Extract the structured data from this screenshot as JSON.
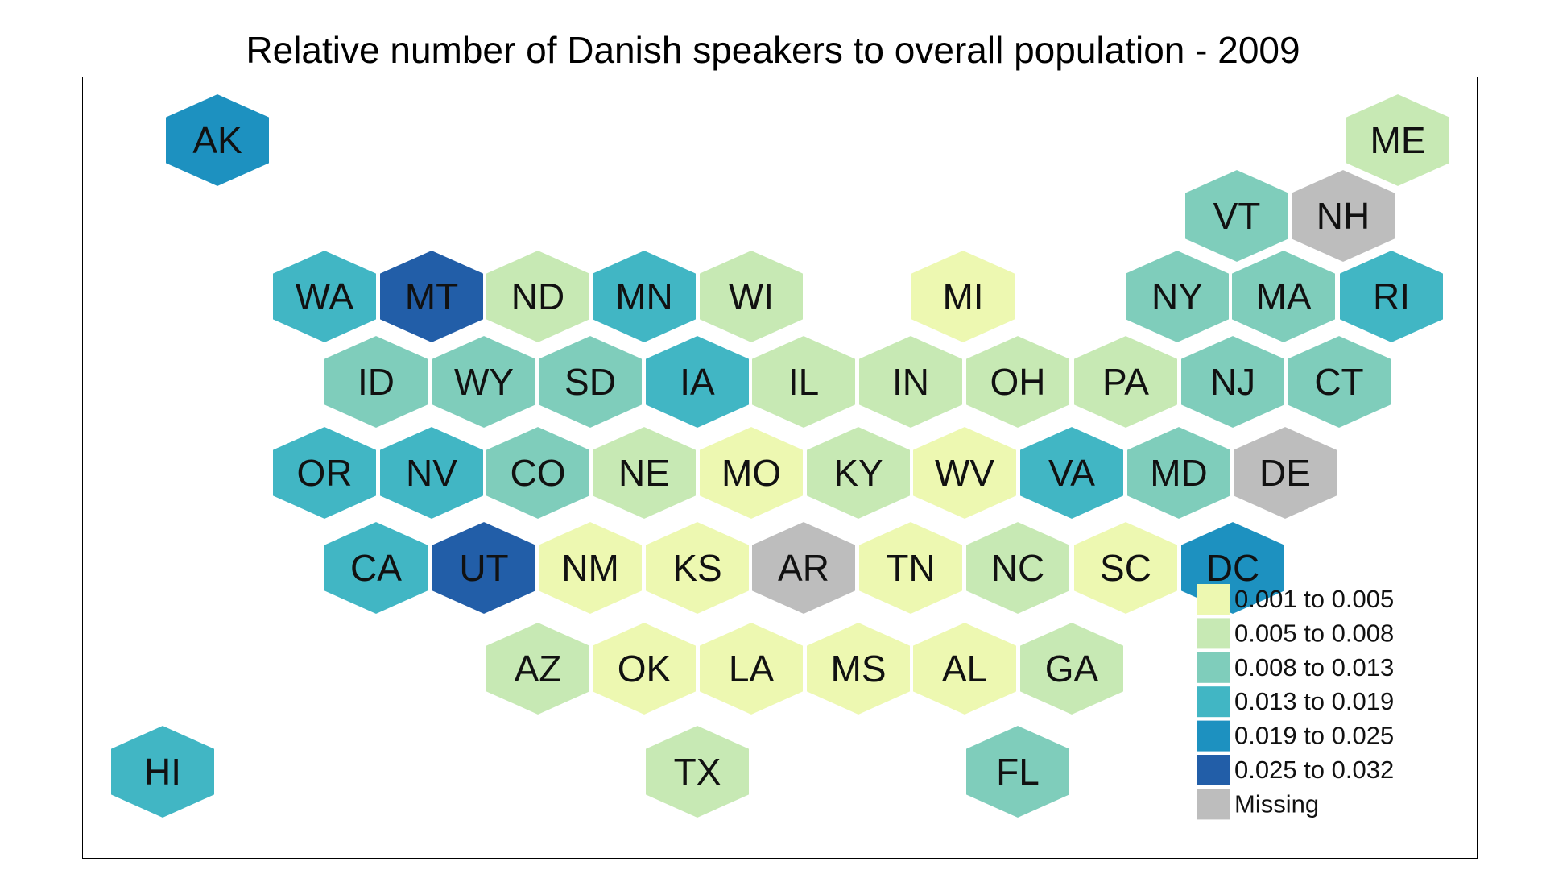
{
  "title": "Relative number of Danish speakers to overall population - 2009",
  "legend": {
    "items": [
      {
        "label": "0.001 to 0.005",
        "color": "#edf8b1"
      },
      {
        "label": "0.005 to 0.008",
        "color": "#c7e9b4"
      },
      {
        "label": "0.008 to 0.013",
        "color": "#7fcdbb"
      },
      {
        "label": "0.013 to 0.019",
        "color": "#41b6c4"
      },
      {
        "label": "0.019 to 0.025",
        "color": "#1d91c0"
      },
      {
        "label": "0.025 to 0.032",
        "color": "#225ea8"
      },
      {
        "label": "Missing",
        "color": "#bdbdbd"
      }
    ]
  },
  "states": [
    {
      "abbr": "AK",
      "bin": 4
    },
    {
      "abbr": "ME",
      "bin": 1
    },
    {
      "abbr": "VT",
      "bin": 2
    },
    {
      "abbr": "NH",
      "bin": 6
    },
    {
      "abbr": "WA",
      "bin": 3
    },
    {
      "abbr": "MT",
      "bin": 5
    },
    {
      "abbr": "ND",
      "bin": 1
    },
    {
      "abbr": "MN",
      "bin": 3
    },
    {
      "abbr": "WI",
      "bin": 1
    },
    {
      "abbr": "MI",
      "bin": 0
    },
    {
      "abbr": "NY",
      "bin": 2
    },
    {
      "abbr": "MA",
      "bin": 2
    },
    {
      "abbr": "RI",
      "bin": 3
    },
    {
      "abbr": "ID",
      "bin": 2
    },
    {
      "abbr": "WY",
      "bin": 2
    },
    {
      "abbr": "SD",
      "bin": 2
    },
    {
      "abbr": "IA",
      "bin": 3
    },
    {
      "abbr": "IL",
      "bin": 1
    },
    {
      "abbr": "IN",
      "bin": 1
    },
    {
      "abbr": "OH",
      "bin": 1
    },
    {
      "abbr": "PA",
      "bin": 1
    },
    {
      "abbr": "NJ",
      "bin": 2
    },
    {
      "abbr": "CT",
      "bin": 2
    },
    {
      "abbr": "OR",
      "bin": 3
    },
    {
      "abbr": "NV",
      "bin": 3
    },
    {
      "abbr": "CO",
      "bin": 2
    },
    {
      "abbr": "NE",
      "bin": 1
    },
    {
      "abbr": "MO",
      "bin": 0
    },
    {
      "abbr": "KY",
      "bin": 1
    },
    {
      "abbr": "WV",
      "bin": 0
    },
    {
      "abbr": "VA",
      "bin": 3
    },
    {
      "abbr": "MD",
      "bin": 2
    },
    {
      "abbr": "DE",
      "bin": 6
    },
    {
      "abbr": "CA",
      "bin": 3
    },
    {
      "abbr": "UT",
      "bin": 5
    },
    {
      "abbr": "NM",
      "bin": 0
    },
    {
      "abbr": "KS",
      "bin": 0
    },
    {
      "abbr": "AR",
      "bin": 6
    },
    {
      "abbr": "TN",
      "bin": 0
    },
    {
      "abbr": "NC",
      "bin": 1
    },
    {
      "abbr": "SC",
      "bin": 0
    },
    {
      "abbr": "DC",
      "bin": 4
    },
    {
      "abbr": "AZ",
      "bin": 1
    },
    {
      "abbr": "OK",
      "bin": 0
    },
    {
      "abbr": "LA",
      "bin": 0
    },
    {
      "abbr": "MS",
      "bin": 0
    },
    {
      "abbr": "AL",
      "bin": 0
    },
    {
      "abbr": "GA",
      "bin": 1
    },
    {
      "abbr": "HI",
      "bin": 3
    },
    {
      "abbr": "TX",
      "bin": 1
    },
    {
      "abbr": "FL",
      "bin": 2
    }
  ]
}
